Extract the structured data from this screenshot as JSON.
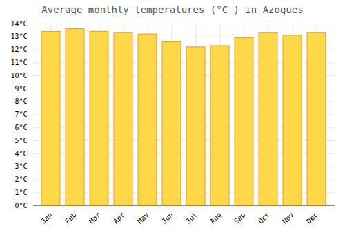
{
  "chart_data": {
    "type": "bar",
    "title": "Average monthly temperatures (°C ) in Azogues",
    "categories": [
      "Jan",
      "Feb",
      "Mar",
      "Apr",
      "May",
      "Jun",
      "Jul",
      "Aug",
      "Sep",
      "Oct",
      "Nov",
      "Dec"
    ],
    "values": [
      13.4,
      13.6,
      13.4,
      13.3,
      13.2,
      12.6,
      12.2,
      12.3,
      12.9,
      13.3,
      13.1,
      13.3
    ],
    "color": "#FFD84A",
    "ylim": [
      0,
      14
    ],
    "yticks": [
      {
        "value": 0,
        "label": "0°C"
      },
      {
        "value": 1,
        "label": "1°C"
      },
      {
        "value": 2,
        "label": "2°C"
      },
      {
        "value": 3,
        "label": "3°C"
      },
      {
        "value": 4,
        "label": "4°C"
      },
      {
        "value": 5,
        "label": "5°C"
      },
      {
        "value": 6,
        "label": "6°C"
      },
      {
        "value": 7,
        "label": "7°C"
      },
      {
        "value": 8,
        "label": "8°C"
      },
      {
        "value": 9,
        "label": "9°C"
      },
      {
        "value": 10,
        "label": "10°C"
      },
      {
        "value": 11,
        "label": "11°C"
      },
      {
        "value": 12,
        "label": "12°C"
      },
      {
        "value": 13,
        "label": "13°C"
      },
      {
        "value": 14,
        "label": "14°C"
      }
    ],
    "grid": true
  }
}
